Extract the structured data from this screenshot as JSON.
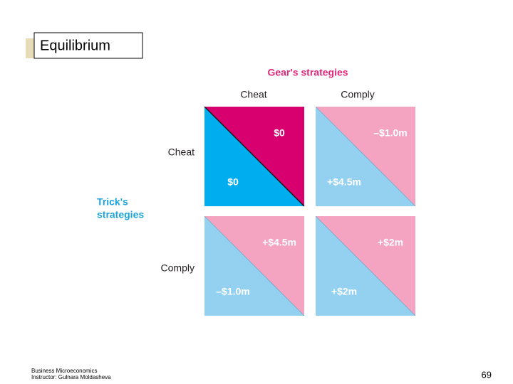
{
  "header": {
    "title": "Equilibrium"
  },
  "matrix": {
    "column_header": "Gear's strategies",
    "columns": [
      "Cheat",
      "Comply"
    ],
    "row_header": [
      "Trick's",
      "strategies"
    ],
    "rows": [
      "Cheat",
      "Comply"
    ],
    "cells": [
      [
        {
          "gear": "$0",
          "trick": "$0",
          "equilibrium": true
        },
        {
          "gear": "–$1.0m",
          "trick": "+$4.5m",
          "equilibrium": false
        }
      ],
      [
        {
          "gear": "+$4.5m",
          "trick": "–$1.0m",
          "equilibrium": false
        },
        {
          "gear": "+$2m",
          "trick": "+$2m",
          "equilibrium": false
        }
      ]
    ]
  },
  "footer": {
    "course": "Business Microeconomics",
    "instructor": "Instructor: Gulnara Moldasheva",
    "page": "69"
  }
}
